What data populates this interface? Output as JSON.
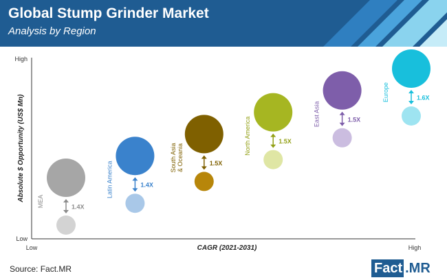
{
  "header": {
    "title": "Global Stump Grinder Market",
    "subtitle": "Analysis by Region"
  },
  "source": "Source: Fact.MR",
  "logo": {
    "part1": "Fact",
    "part2": ".MR"
  },
  "colors": {
    "header_bg": "#1f5c92",
    "accent_light": "#8ad3ee"
  },
  "chart_data": {
    "type": "scatter",
    "xlabel": "CAGR (2021-2031)",
    "ylabel": "Absolute $ Opportunity (US$ Mn)",
    "x_ticks": {
      "low": "Low",
      "high": "High"
    },
    "y_ticks": {
      "low": "Low",
      "high": "High"
    },
    "series": [
      {
        "name": "MEA",
        "multiplier": "1.4X",
        "rank": 1,
        "color_big": "#a6a6a6",
        "color_small": "#d3d3d3",
        "label_color": "#8c8c8c"
      },
      {
        "name": "Latin America",
        "multiplier": "1.4X",
        "rank": 2,
        "color_big": "#3a82cc",
        "color_small": "#a9c8e8",
        "label_color": "#3a82cc"
      },
      {
        "name": "South Asia & Oceania",
        "multiplier": "1.5X",
        "rank": 3,
        "color_big": "#7f6000",
        "color_small": "#b7860a",
        "label_color": "#7f6000"
      },
      {
        "name": "North America",
        "multiplier": "1.5X",
        "rank": 4,
        "color_big": "#a6b622",
        "color_small": "#dfe6a4",
        "label_color": "#93a016"
      },
      {
        "name": "East Asia",
        "multiplier": "1.5X",
        "rank": 5,
        "color_big": "#7e5eaa",
        "color_small": "#cbbde0",
        "label_color": "#7e5eaa"
      },
      {
        "name": "Europe",
        "multiplier": "1.6X",
        "rank": 6,
        "color_big": "#18bfdc",
        "color_small": "#9ee4f1",
        "label_color": "#18bfdc"
      }
    ]
  }
}
